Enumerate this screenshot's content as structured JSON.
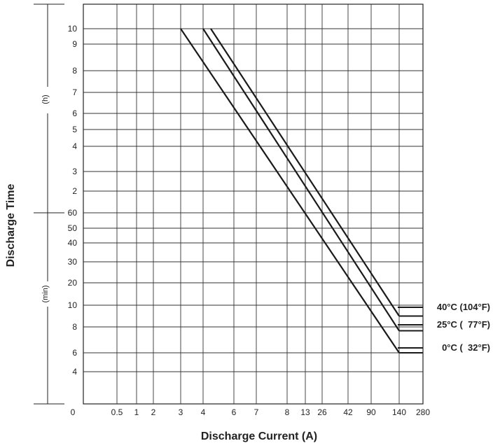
{
  "chart_data": {
    "type": "line",
    "title": "",
    "xlabel": "Discharge Current (A)",
    "ylabel": "Discharge Time",
    "x_tick_labels": [
      "0",
      "0.5",
      "1",
      "2",
      "3",
      "4",
      "6",
      "7",
      "8",
      "13",
      "26",
      "42",
      "90",
      "140",
      "280"
    ],
    "y_tick_labels_hours": [
      "10",
      "9",
      "8",
      "7",
      "6",
      "5",
      "4",
      "3",
      "2"
    ],
    "y_tick_labels_minutes": [
      "60",
      "50",
      "40",
      "30",
      "20",
      "10",
      "8",
      "6",
      "4"
    ],
    "y_unit_hours": "(h)",
    "y_unit_minutes": "(min)",
    "grid": true,
    "legend_position": "right",
    "series": [
      {
        "name": "40°C (104°F)",
        "points": [
          {
            "x": "4.5",
            "y": "10 h"
          },
          {
            "x": "140",
            "y": "9 min"
          }
        ]
      },
      {
        "name": "25°C (  77°F)",
        "points": [
          {
            "x": "4",
            "y": "10 h"
          },
          {
            "x": "140",
            "y": "7.7 min"
          }
        ]
      },
      {
        "name": "0°C (  32°F)",
        "points": [
          {
            "x": "3",
            "y": "10 h"
          },
          {
            "x": "140",
            "y": "6 min"
          }
        ]
      }
    ]
  }
}
